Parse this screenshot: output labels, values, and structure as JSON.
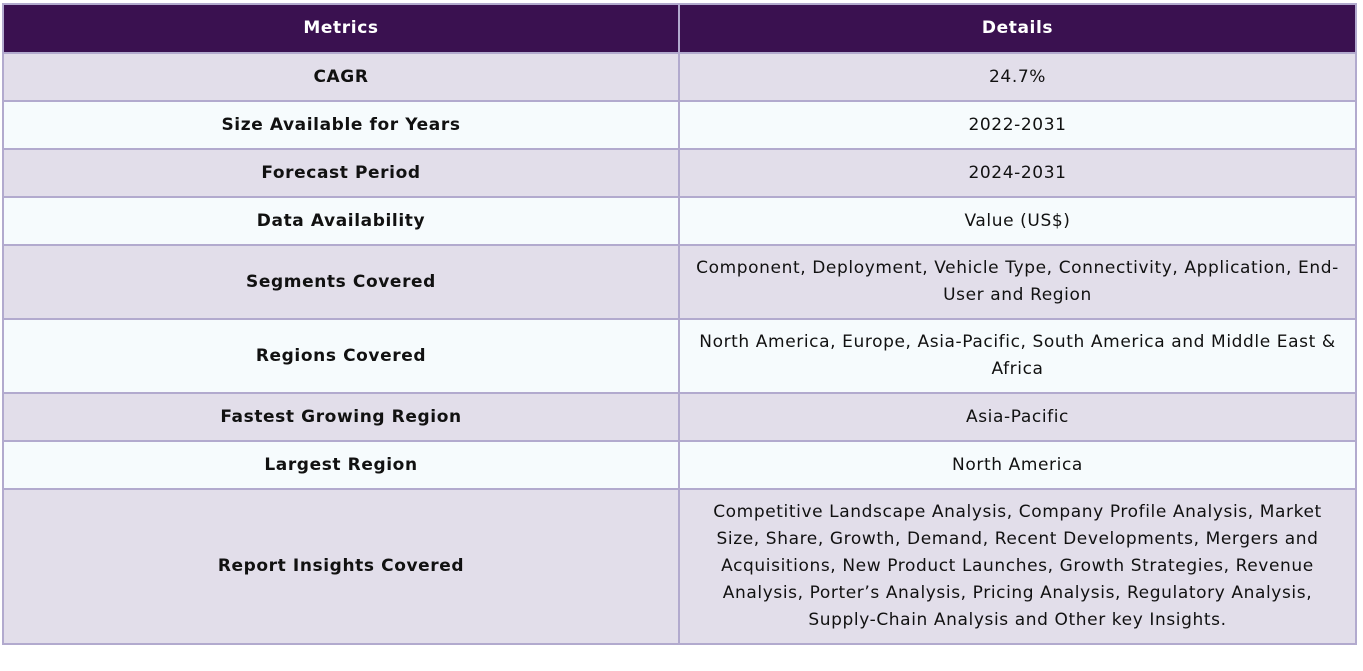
{
  "table": {
    "headers": {
      "metrics": "Metrics",
      "details": "Details"
    },
    "rows": [
      {
        "metric": "CAGR",
        "detail": "24.7%"
      },
      {
        "metric": "Size Available for Years",
        "detail": "2022-2031"
      },
      {
        "metric": "Forecast Period",
        "detail": "2024-2031"
      },
      {
        "metric": "Data Availability",
        "detail": "Value (US$)"
      },
      {
        "metric": "Segments Covered",
        "detail": "Component, Deployment, Vehicle Type, Connectivity, Application, End-User and Region"
      },
      {
        "metric": "Regions Covered",
        "detail": "North America, Europe, Asia-Pacific, South America and Middle East & Africa"
      },
      {
        "metric": "Fastest Growing Region",
        "detail": "Asia-Pacific"
      },
      {
        "metric": "Largest Region",
        "detail": "North America"
      },
      {
        "metric": "Report Insights Covered",
        "detail": "Competitive Landscape Analysis, Company Profile Analysis, Market Size, Share, Growth, Demand, Recent Developments, Mergers and Acquisitions, New Product Launches, Growth Strategies, Revenue Analysis, Porter’s Analysis, Pricing Analysis, Regulatory Analysis, Supply-Chain Analysis and Other key Insights."
      }
    ]
  },
  "colors": {
    "header_bg": "#3a1150",
    "row_odd_bg": "#e2deea",
    "row_even_bg": "#f6fbfd",
    "border": "#b2aace"
  }
}
